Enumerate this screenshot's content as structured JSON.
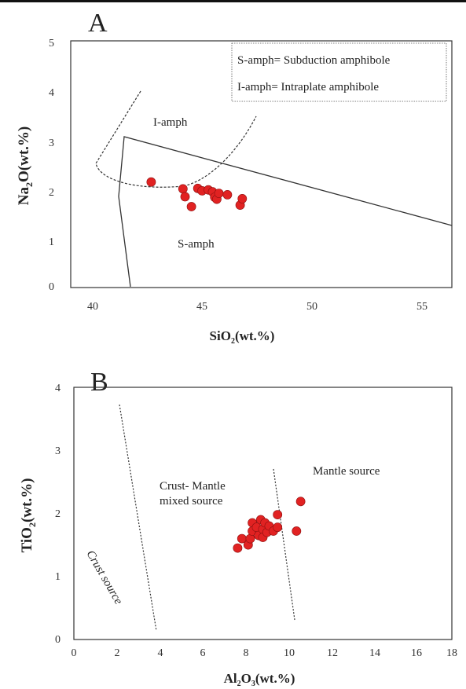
{
  "chart_data": [
    {
      "type": "scatter",
      "title": "A",
      "xlabel": "SiO2(wt.%)",
      "ylabel": "Na2O(wt.%)",
      "xlim": [
        39,
        57
      ],
      "ylim": [
        0,
        5
      ],
      "xticks": [
        "40",
        "45",
        "50",
        "55"
      ],
      "yticks": [
        "0",
        "1",
        "2",
        "3",
        "4",
        "5"
      ],
      "legend_lines": [
        "S-amph= Subduction amphibole",
        "I-amph= Intraplate amphibole"
      ],
      "region_labels": [
        "I-amph",
        "S-amph"
      ],
      "points": [
        {
          "x": 42.8,
          "y": 2.13
        },
        {
          "x": 44.3,
          "y": 1.99
        },
        {
          "x": 44.4,
          "y": 1.83
        },
        {
          "x": 44.7,
          "y": 1.63
        },
        {
          "x": 45.0,
          "y": 2.0
        },
        {
          "x": 45.2,
          "y": 1.95
        },
        {
          "x": 45.5,
          "y": 1.97
        },
        {
          "x": 45.7,
          "y": 1.93
        },
        {
          "x": 45.8,
          "y": 1.82
        },
        {
          "x": 45.9,
          "y": 1.78
        },
        {
          "x": 46.0,
          "y": 1.9
        },
        {
          "x": 46.4,
          "y": 1.87
        },
        {
          "x": 47.0,
          "y": 1.66
        },
        {
          "x": 47.1,
          "y": 1.79
        }
      ]
    },
    {
      "type": "scatter",
      "title": "B",
      "xlabel": "Al2O3(wt.%)",
      "ylabel": "TiO2(wt.%)",
      "xlim": [
        0,
        18
      ],
      "ylim": [
        0,
        4
      ],
      "xticks": [
        "0",
        "2",
        "4",
        "6",
        "8",
        "10",
        "12",
        "14",
        "16",
        "18"
      ],
      "yticks": [
        "0",
        "1",
        "2",
        "3",
        "4"
      ],
      "region_labels": [
        "Crust source",
        "Crust- Mantle",
        "mixed source",
        "Mantle source"
      ],
      "points": [
        {
          "x": 7.8,
          "y": 1.45
        },
        {
          "x": 8.0,
          "y": 1.6
        },
        {
          "x": 8.3,
          "y": 1.5
        },
        {
          "x": 8.4,
          "y": 1.6
        },
        {
          "x": 8.5,
          "y": 1.85
        },
        {
          "x": 8.5,
          "y": 1.72
        },
        {
          "x": 8.7,
          "y": 1.78
        },
        {
          "x": 8.8,
          "y": 1.65
        },
        {
          "x": 8.9,
          "y": 1.9
        },
        {
          "x": 9.0,
          "y": 1.75
        },
        {
          "x": 9.0,
          "y": 1.62
        },
        {
          "x": 9.1,
          "y": 1.85
        },
        {
          "x": 9.2,
          "y": 1.7
        },
        {
          "x": 9.3,
          "y": 1.8
        },
        {
          "x": 9.5,
          "y": 1.72
        },
        {
          "x": 9.7,
          "y": 1.98
        },
        {
          "x": 9.7,
          "y": 1.78
        },
        {
          "x": 10.6,
          "y": 1.72
        },
        {
          "x": 10.8,
          "y": 2.19
        }
      ]
    }
  ]
}
